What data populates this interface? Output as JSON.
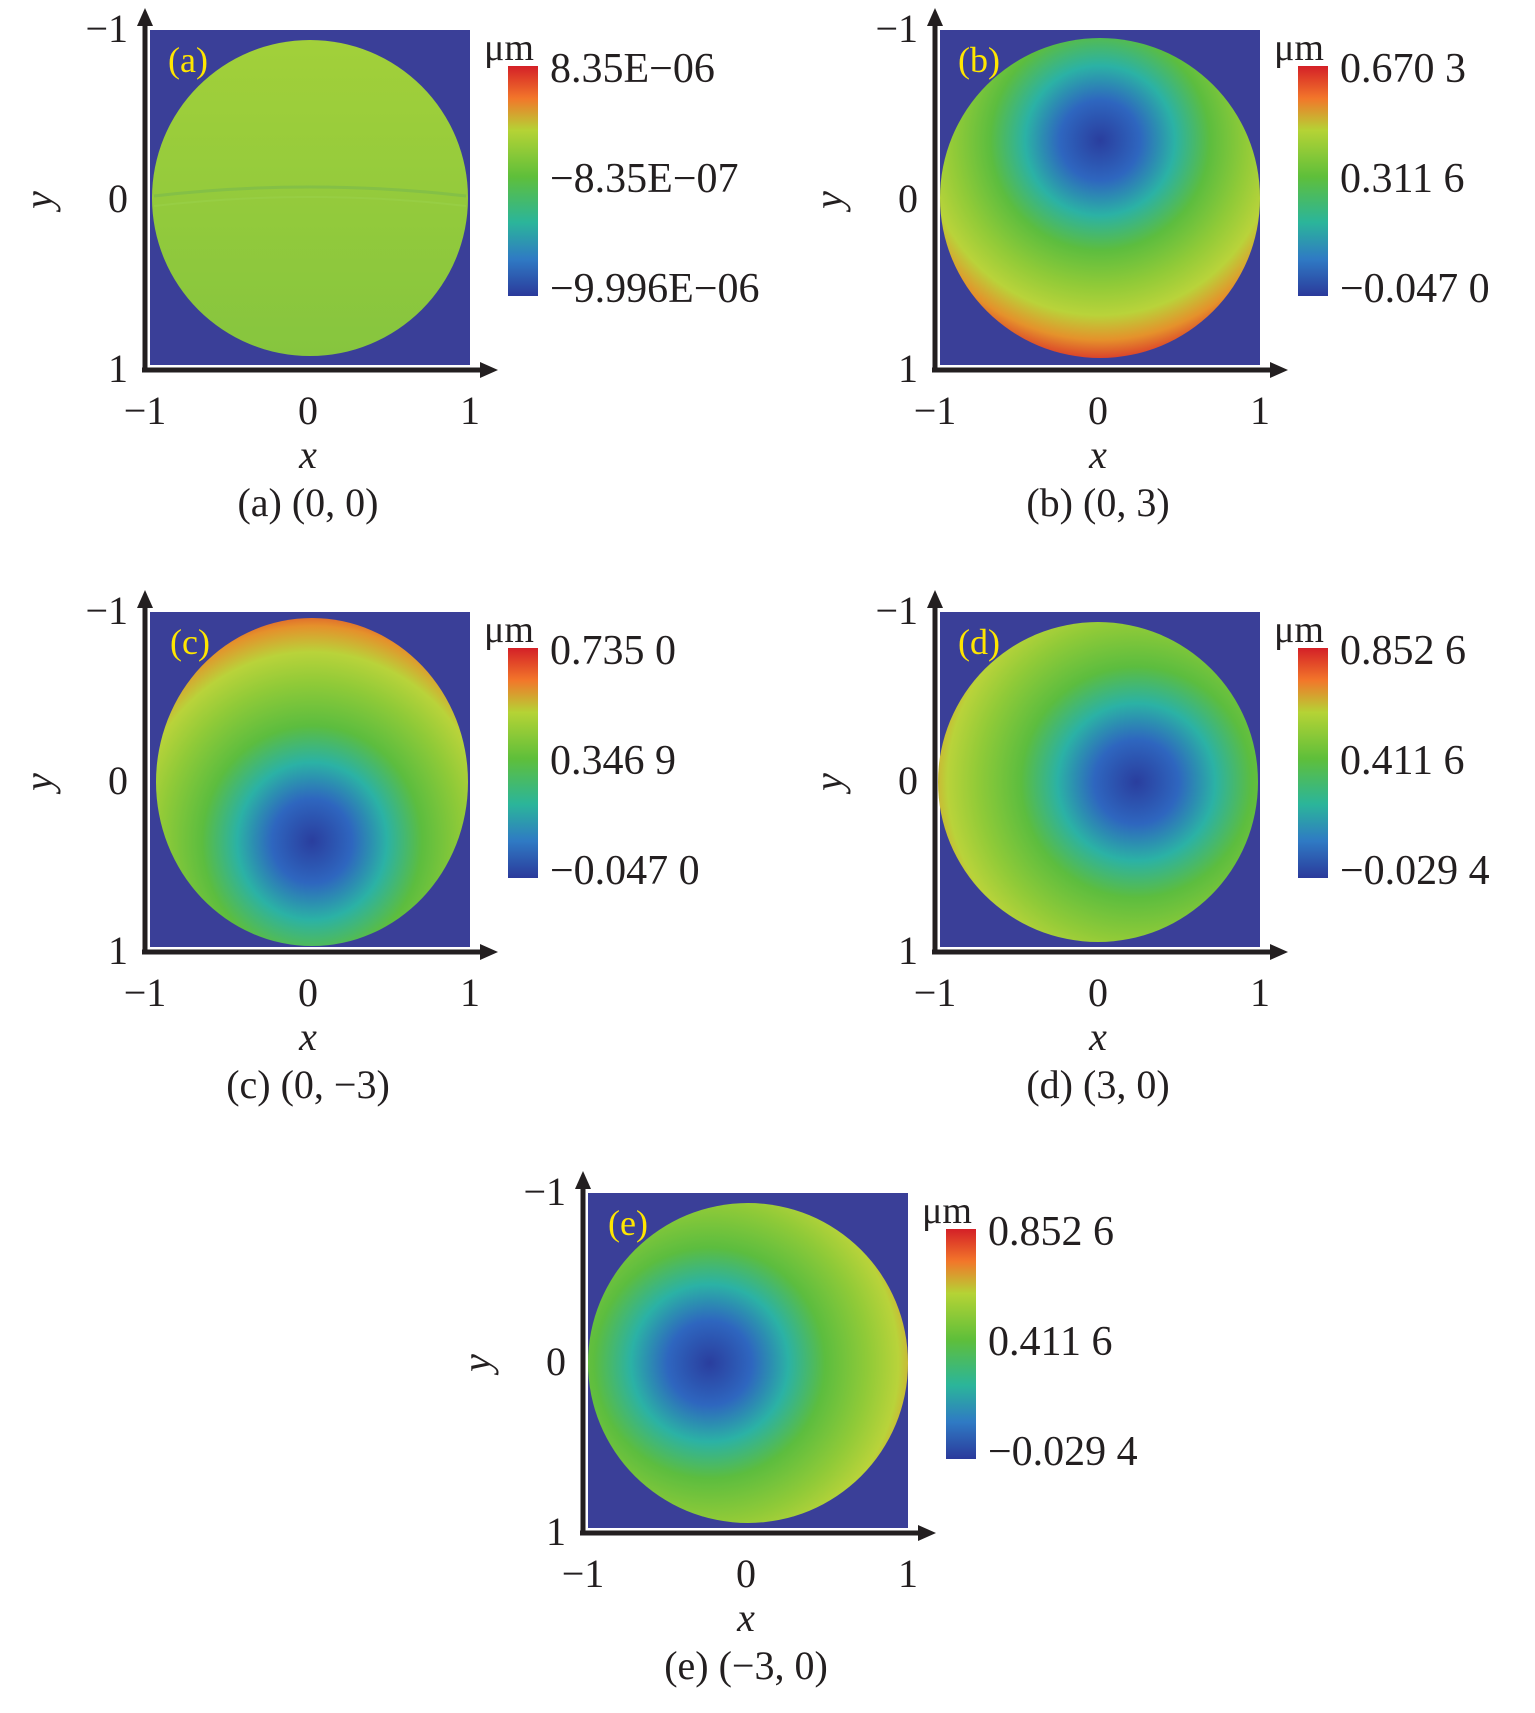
{
  "chart_data": [
    {
      "type": "heatmap",
      "panel_label": "(a)",
      "caption": "(a) (0, 0)",
      "xlabel": "x",
      "ylabel": "y",
      "x_ticks": [
        "−1",
        "0",
        "1"
      ],
      "y_ticks": [
        "−1",
        "0",
        "1"
      ],
      "xlim": [
        -1,
        1
      ],
      "ylim": [
        -1,
        1
      ],
      "colorbar": {
        "unit": "μm",
        "max": "8.35E−06",
        "mid": "−8.35E−07",
        "min": "−9.996E−06"
      },
      "pattern": "flat"
    },
    {
      "type": "heatmap",
      "panel_label": "(b)",
      "caption": "(b) (0, 3)",
      "xlabel": "x",
      "ylabel": "y",
      "x_ticks": [
        "−1",
        "0",
        "1"
      ],
      "y_ticks": [
        "−1",
        "0",
        "1"
      ],
      "xlim": [
        -1,
        1
      ],
      "ylim": [
        -1,
        1
      ],
      "colorbar": {
        "unit": "μm",
        "max": "0.670 3",
        "mid": "0.311 6",
        "min": "−0.047 0"
      },
      "pattern": "min-top"
    },
    {
      "type": "heatmap",
      "panel_label": "(c)",
      "caption": "(c) (0, −3)",
      "xlabel": "x",
      "ylabel": "y",
      "x_ticks": [
        "−1",
        "0",
        "1"
      ],
      "y_ticks": [
        "−1",
        "0",
        "1"
      ],
      "xlim": [
        -1,
        1
      ],
      "ylim": [
        -1,
        1
      ],
      "colorbar": {
        "unit": "μm",
        "max": "0.735 0",
        "mid": "0.346 9",
        "min": "−0.047 0"
      },
      "pattern": "min-bottom"
    },
    {
      "type": "heatmap",
      "panel_label": "(d)",
      "caption": "(d) (3, 0)",
      "xlabel": "x",
      "ylabel": "y",
      "x_ticks": [
        "−1",
        "0",
        "1"
      ],
      "y_ticks": [
        "−1",
        "0",
        "1"
      ],
      "xlim": [
        -1,
        1
      ],
      "ylim": [
        -1,
        1
      ],
      "colorbar": {
        "unit": "μm",
        "max": "0.852 6",
        "mid": "0.411 6",
        "min": "−0.029 4"
      },
      "pattern": "min-right"
    },
    {
      "type": "heatmap",
      "panel_label": "(e)",
      "caption": "(e) (−3, 0)",
      "xlabel": "x",
      "ylabel": "y",
      "x_ticks": [
        "−1",
        "0",
        "1"
      ],
      "y_ticks": [
        "−1",
        "0",
        "1"
      ],
      "xlim": [
        -1,
        1
      ],
      "ylim": [
        -1,
        1
      ],
      "colorbar": {
        "unit": "μm",
        "max": "0.852 6",
        "mid": "0.411 6",
        "min": "−0.029 4"
      },
      "pattern": "min-left"
    }
  ],
  "colors": {
    "background": "#3a3f98",
    "axis": "#231f20",
    "panel_label": "#ffe600"
  }
}
